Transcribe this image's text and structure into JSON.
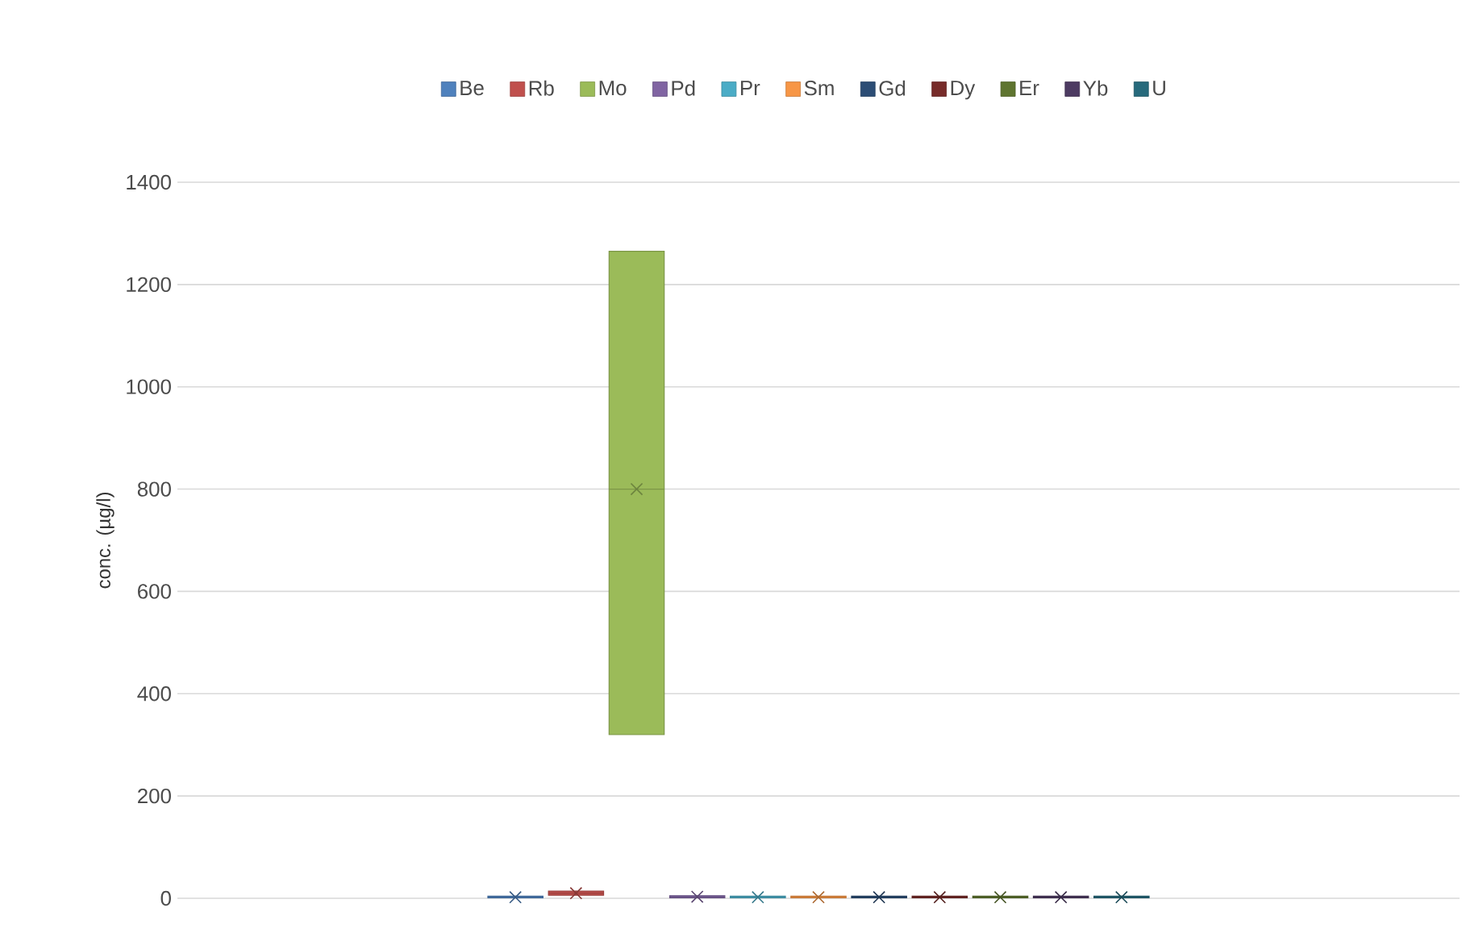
{
  "chart_data": {
    "type": "box",
    "ylabel": "conc. (µg/l)",
    "categories": [
      null
    ],
    "ylim": [
      0,
      1400
    ],
    "yticks": [
      0,
      200,
      400,
      600,
      800,
      1000,
      1200,
      1400
    ],
    "grid": "y",
    "legend": "top",
    "marker": "cross",
    "tick_labels": "y",
    "series": [
      {
        "name": "Be",
        "color": "#4f81bd",
        "boxes": [
          {
            "low": 0,
            "q1": 1,
            "median": 2,
            "q3": 4,
            "high": 5,
            "mean": 2
          }
        ]
      },
      {
        "name": "Rb",
        "color": "#c0504d",
        "boxes": [
          {
            "low": 5,
            "q1": 6,
            "median": 10,
            "q3": 14,
            "high": 15,
            "mean": 10
          }
        ]
      },
      {
        "name": "Mo",
        "color": "#9bbb59",
        "boxes": [
          {
            "low": 320,
            "q1": 320,
            "median": 800,
            "q3": 1265,
            "high": 1265,
            "mean": 800
          }
        ]
      },
      {
        "name": "Pd",
        "color": "#8064a2",
        "boxes": [
          {
            "low": 0,
            "q1": 1,
            "median": 3,
            "q3": 5,
            "high": 6,
            "mean": 3
          }
        ]
      },
      {
        "name": "Pr",
        "color": "#4bacc6",
        "boxes": [
          {
            "low": 0,
            "q1": 1,
            "median": 2,
            "q3": 4,
            "high": 5,
            "mean": 2
          }
        ]
      },
      {
        "name": "Sm",
        "color": "#f79646",
        "boxes": [
          {
            "low": 0,
            "q1": 1,
            "median": 2,
            "q3": 4,
            "high": 5,
            "mean": 2
          }
        ]
      },
      {
        "name": "Gd",
        "color": "#2c4d75",
        "boxes": [
          {
            "low": 0,
            "q1": 1,
            "median": 2,
            "q3": 4,
            "high": 5,
            "mean": 2
          }
        ]
      },
      {
        "name": "Dy",
        "color": "#772c2a",
        "boxes": [
          {
            "low": 0,
            "q1": 1,
            "median": 2,
            "q3": 4,
            "high": 5,
            "mean": 2
          }
        ]
      },
      {
        "name": "Er",
        "color": "#5f7530",
        "boxes": [
          {
            "low": 0,
            "q1": 1,
            "median": 2,
            "q3": 4,
            "high": 5,
            "mean": 2
          }
        ]
      },
      {
        "name": "Yb",
        "color": "#4d3b62",
        "boxes": [
          {
            "low": 0,
            "q1": 1,
            "median": 2,
            "q3": 4,
            "high": 5,
            "mean": 2
          }
        ]
      },
      {
        "name": "U",
        "color": "#276a7c",
        "boxes": [
          {
            "low": 0,
            "q1": 1,
            "median": 2,
            "q3": 4,
            "high": 5,
            "mean": 2
          }
        ]
      }
    ]
  }
}
